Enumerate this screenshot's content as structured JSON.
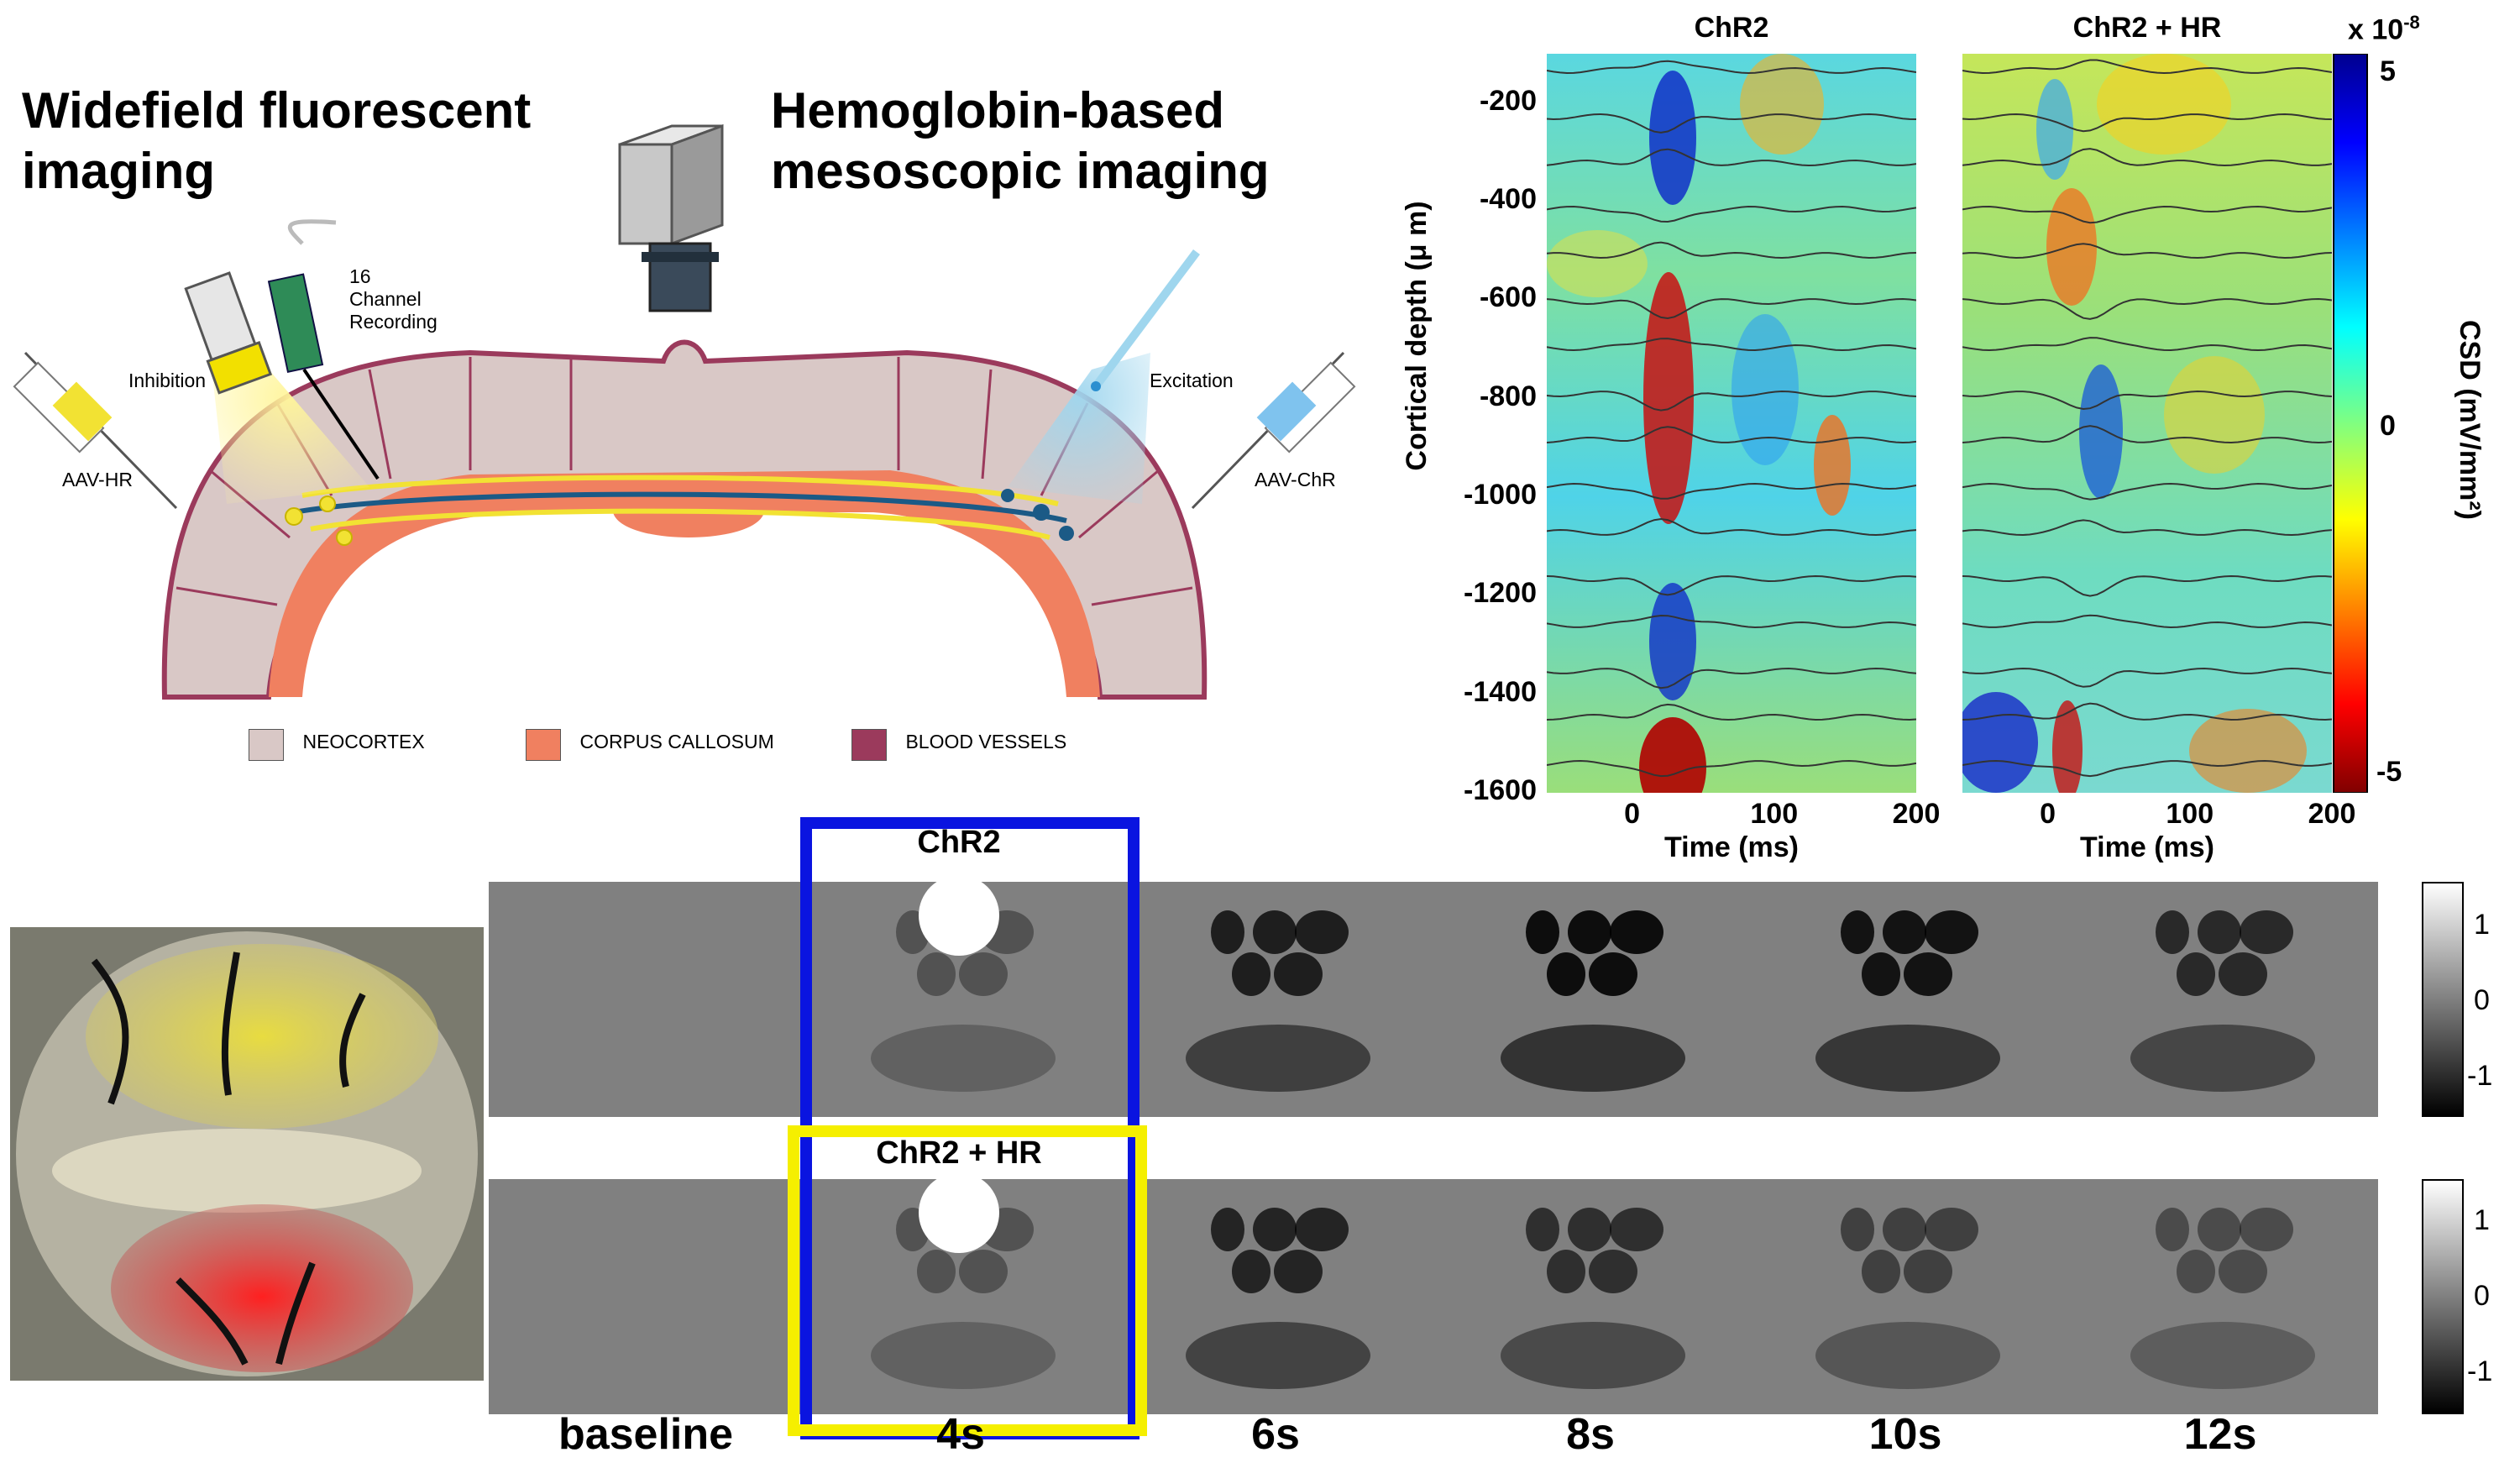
{
  "diagram": {
    "title_widefield": "Widefield fluorescent\nimaging",
    "title_hemoglobin": "Hemoglobin-based\nmesoscopic imaging",
    "label_channel": "16\nChannel\nRecording",
    "label_inhibition": "Inhibition",
    "label_excitation": "Excitation",
    "label_aav_hr": "AAV-HR",
    "label_aav_chr": "AAV-ChR",
    "legend": [
      {
        "label": "NEOCORTEX",
        "color": "#d9c8c6"
      },
      {
        "label": "CORPUS CALLOSUM",
        "color": "#f08060"
      },
      {
        "label": "BLOOD VESSELS",
        "color": "#9b3a5c"
      }
    ]
  },
  "chart_data": [
    {
      "type": "heatmap",
      "title": "ChR2",
      "xlabel": "Time (ms)",
      "ylabel": "Cortical depth (μ m)",
      "xticks": [
        "0",
        "100",
        "200"
      ],
      "yticks": [
        "-200",
        "-400",
        "-600",
        "-800",
        "-1000",
        "-1200",
        "-1400",
        "-1600"
      ],
      "xlim": [
        -60,
        200
      ],
      "ylim": [
        -1600,
        -100
      ]
    },
    {
      "type": "heatmap",
      "title": "ChR2 + HR",
      "xlabel": "Time (ms)",
      "xticks": [
        "0",
        "100",
        "200"
      ],
      "xlim": [
        -60,
        200
      ],
      "ylim": [
        -1600,
        -100
      ]
    }
  ],
  "csd_colorbar": {
    "label": "CSD (mV/mm²)",
    "exponent": "x 10",
    "exponent_power": "-8",
    "ticks": [
      "5",
      "0",
      "-5"
    ]
  },
  "imaging": {
    "row_labels": [
      "ChR2",
      "ChR2 + HR"
    ],
    "time_labels": [
      "baseline",
      "4s",
      "6s",
      "8s",
      "10s",
      "12s"
    ],
    "gray_colorbar_ticks": [
      "1",
      "0",
      "-1"
    ],
    "colors": {
      "blue_box": "#0a14e0",
      "yellow_box": "#f5ef00"
    }
  }
}
